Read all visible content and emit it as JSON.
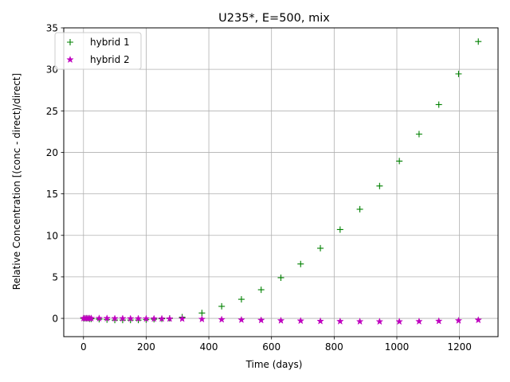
{
  "chart_data": {
    "type": "scatter",
    "title": "U235*, E=500, mix",
    "xlabel": "Time (days)",
    "ylabel": "Relative Concentration [(conc - direct)/direct]",
    "xlim": [
      -63,
      1323
    ],
    "ylim": [
      -2.2,
      35
    ],
    "xticks": [
      0,
      200,
      400,
      600,
      800,
      1000,
      1200
    ],
    "yticks": [
      0,
      5,
      10,
      15,
      20,
      25,
      30,
      35
    ],
    "grid": true,
    "legend_position": "top-left",
    "series": [
      {
        "name": "hybrid 1",
        "marker": "plus",
        "color": "#008000",
        "x": [
          0,
          5,
          10,
          15,
          20,
          25,
          50,
          75,
          100,
          125,
          150,
          175,
          200,
          225,
          250,
          275,
          315,
          378,
          441,
          504,
          567,
          630,
          693,
          756,
          819,
          882,
          945,
          1008,
          1071,
          1134,
          1197,
          1260
        ],
        "y": [
          0,
          0,
          0,
          0,
          -0.05,
          -0.05,
          -0.1,
          -0.15,
          -0.2,
          -0.2,
          -0.2,
          -0.2,
          -0.15,
          -0.1,
          -0.05,
          0,
          0.15,
          0.65,
          1.45,
          2.3,
          3.45,
          4.9,
          6.55,
          8.45,
          10.7,
          13.15,
          15.95,
          18.95,
          22.2,
          25.75,
          29.45,
          33.35
        ]
      },
      {
        "name": "hybrid 2",
        "marker": "star",
        "color": "#bf00bf",
        "x": [
          0,
          5,
          10,
          15,
          20,
          25,
          50,
          75,
          100,
          125,
          150,
          175,
          200,
          225,
          250,
          275,
          315,
          378,
          441,
          504,
          567,
          630,
          693,
          756,
          819,
          882,
          945,
          1008,
          1071,
          1134,
          1197,
          1260
        ],
        "y": [
          0,
          0,
          0,
          0,
          0,
          0,
          0,
          0,
          -0.02,
          -0.02,
          -0.03,
          -0.03,
          -0.04,
          -0.04,
          -0.05,
          -0.05,
          -0.06,
          -0.1,
          -0.14,
          -0.18,
          -0.22,
          -0.27,
          -0.3,
          -0.34,
          -0.36,
          -0.38,
          -0.39,
          -0.39,
          -0.37,
          -0.33,
          -0.27,
          -0.2
        ]
      }
    ]
  }
}
